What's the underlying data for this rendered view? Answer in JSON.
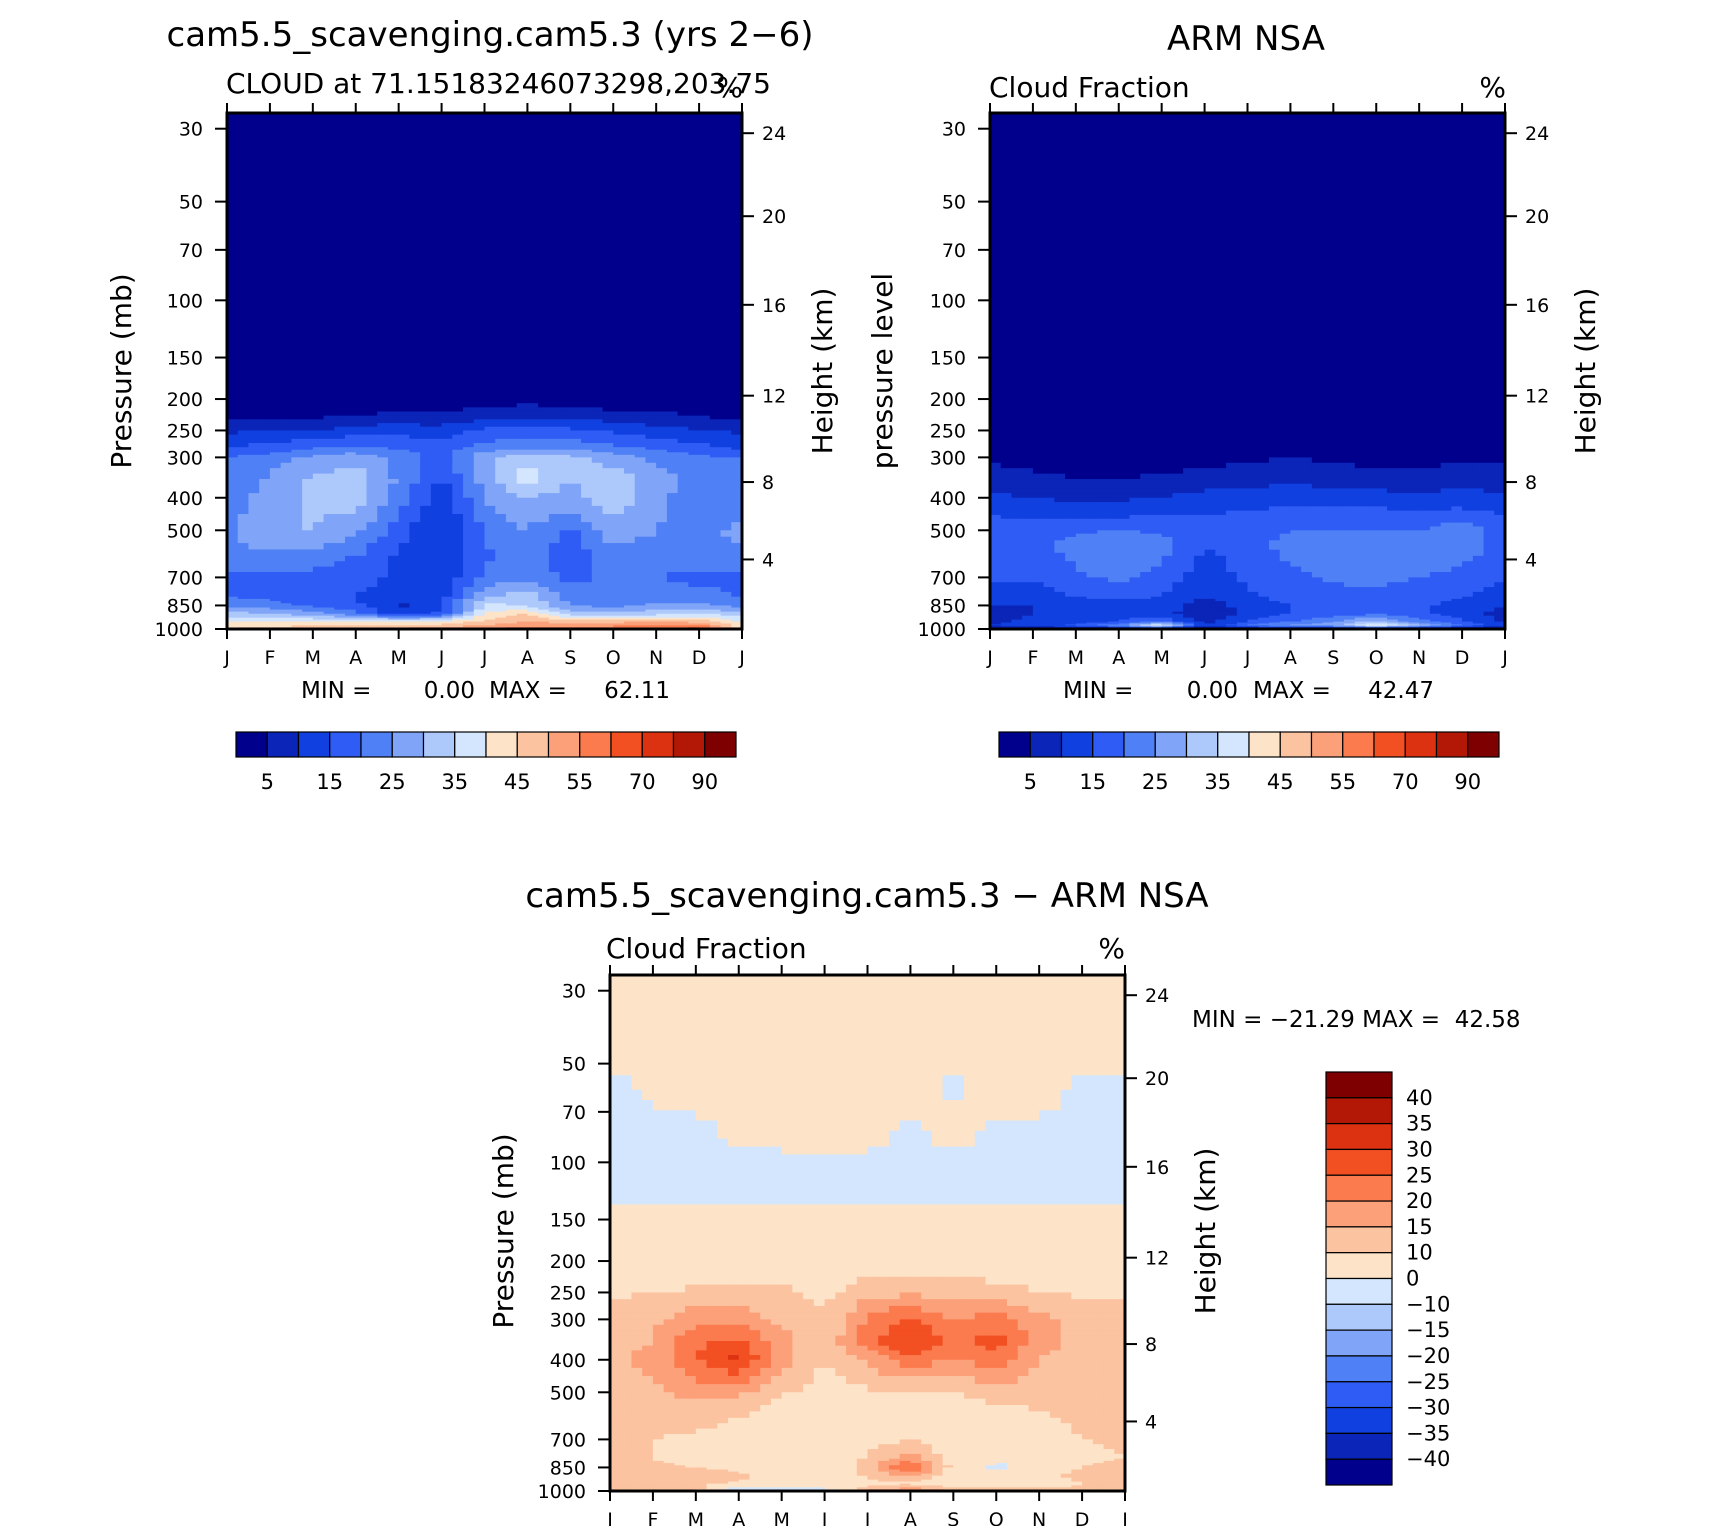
{
  "panels": [
    {
      "title": "cam5.5_scavenging.cam5.3 (yrs 2−6)",
      "subtitle_left": "CLOUD at 71.15183246073298,203.75",
      "subtitle_right": "%",
      "ylabel_left": "Pressure (mb)",
      "ylabel_right": "Height (km)",
      "min_label": "MIN =",
      "min_value": "0.00",
      "max_label": "MAX =",
      "max_value": "62.11"
    },
    {
      "title": "ARM NSA",
      "subtitle_left": "Cloud Fraction",
      "subtitle_right": "%",
      "ylabel_left": "pressure level",
      "ylabel_right": "Height (km)",
      "min_label": "MIN =",
      "min_value": "0.00",
      "max_label": "MAX =",
      "max_value": "42.47"
    },
    {
      "title": "cam5.5_scavenging.cam5.3 − ARM NSA",
      "subtitle_left": "Cloud Fraction",
      "subtitle_right": "%",
      "ylabel_left": "Pressure (mb)",
      "ylabel_right": "Height (km)",
      "minmax_text": "MIN = −21.29 MAX =  42.58"
    }
  ],
  "chart_data": [
    {
      "type": "heatmap",
      "title": "cam5.5_scavenging.cam5.3 (yrs 2−6)",
      "subtitle": "CLOUD at 71.15183246073298,203.75",
      "units": "%",
      "x_tick_labels": [
        "J",
        "F",
        "M",
        "A",
        "M",
        "J",
        "J",
        "A",
        "S",
        "O",
        "N",
        "D",
        "J"
      ],
      "pressure_ticks": [
        30,
        50,
        70,
        100,
        150,
        200,
        250,
        300,
        400,
        500,
        700,
        850,
        1000
      ],
      "height_ticks_km": [
        4,
        8,
        12,
        16,
        20,
        24
      ],
      "ylabel": "Pressure (mb)",
      "y2label": "Height (km)",
      "ylim_mb": [
        1000,
        25
      ],
      "min": 0.0,
      "max": 62.11,
      "colorbar_labels": [
        "5",
        "15",
        "25",
        "35",
        "45",
        "55",
        "70",
        "90"
      ],
      "grid_x_month": [
        0,
        1,
        2,
        3,
        4,
        5,
        6,
        7,
        8,
        9,
        10,
        11,
        12
      ],
      "grid_pressure_mb": [
        25,
        150,
        200,
        225,
        250,
        280,
        300,
        350,
        400,
        500,
        600,
        700,
        800,
        850,
        900,
        950,
        1000
      ],
      "values": [
        [
          0,
          0,
          0,
          0,
          0,
          0,
          0,
          0,
          0,
          0,
          0,
          0,
          0
        ],
        [
          0,
          0,
          0,
          0,
          0,
          0,
          0,
          0,
          0,
          0,
          0,
          0,
          0
        ],
        [
          0,
          1,
          0,
          1,
          1,
          1,
          2,
          3,
          2,
          1,
          1,
          1,
          0
        ],
        [
          3,
          4,
          4,
          5,
          6,
          6,
          8,
          9,
          8,
          7,
          6,
          5,
          3
        ],
        [
          9,
          10,
          10,
          12,
          13,
          12,
          16,
          17,
          16,
          14,
          12,
          10,
          9
        ],
        [
          14,
          17,
          19,
          21,
          19,
          17,
          22,
          24,
          23,
          21,
          19,
          16,
          14
        ],
        [
          20,
          22,
          26,
          28,
          23,
          18,
          29,
          33,
          31,
          28,
          24,
          21,
          20
        ],
        [
          21,
          26,
          31,
          33,
          24,
          14,
          27,
          38,
          30,
          33,
          27,
          23,
          21
        ],
        [
          22,
          27,
          31,
          32,
          23,
          12,
          25,
          30,
          28,
          33,
          26,
          23,
          22
        ],
        [
          24,
          30,
          30,
          27,
          17,
          9,
          21,
          25,
          19,
          29,
          25,
          24,
          26
        ],
        [
          23,
          24,
          23,
          20,
          14,
          10,
          19,
          22,
          17,
          23,
          22,
          22,
          24
        ],
        [
          19,
          19,
          18,
          17,
          14,
          11,
          21,
          23,
          19,
          21,
          20,
          19,
          19
        ],
        [
          20,
          19,
          17,
          15,
          12,
          13,
          30,
          33,
          22,
          20,
          22,
          21,
          20
        ],
        [
          22,
          22,
          19,
          16,
          9,
          14,
          36,
          35,
          25,
          23,
          26,
          27,
          22
        ],
        [
          32,
          30,
          27,
          22,
          11,
          16,
          40,
          45,
          33,
          32,
          33,
          35,
          32
        ],
        [
          40,
          40,
          40,
          40,
          40,
          40,
          46,
          50,
          48,
          48,
          50,
          48,
          40
        ],
        [
          45,
          47,
          49,
          50,
          51,
          53,
          55,
          57,
          58,
          59,
          60,
          62,
          45
        ]
      ]
    },
    {
      "type": "heatmap",
      "title": "ARM NSA",
      "subtitle": "Cloud Fraction",
      "units": "%",
      "x_tick_labels": [
        "J",
        "F",
        "M",
        "A",
        "M",
        "J",
        "J",
        "A",
        "S",
        "O",
        "N",
        "D",
        "J"
      ],
      "pressure_ticks": [
        30,
        50,
        70,
        100,
        150,
        200,
        250,
        300,
        400,
        500,
        700,
        850,
        1000
      ],
      "height_ticks_km": [
        4,
        8,
        12,
        16,
        20,
        24
      ],
      "ylabel": "pressure level",
      "y2label": "Height (km)",
      "ylim_mb": [
        1000,
        25
      ],
      "min": 0.0,
      "max": 42.47,
      "colorbar_labels": [
        "5",
        "15",
        "25",
        "35",
        "45",
        "55",
        "70",
        "90"
      ],
      "grid_x_month": [
        0,
        1,
        2,
        3,
        4,
        5,
        6,
        7,
        8,
        9,
        10,
        11,
        12
      ],
      "grid_pressure_mb": [
        25,
        250,
        300,
        350,
        400,
        450,
        500,
        550,
        600,
        700,
        800,
        850,
        900,
        950,
        975,
        1000
      ],
      "values": [
        [
          0,
          0,
          0,
          0,
          0,
          0,
          0,
          0,
          0,
          0,
          0,
          0,
          0
        ],
        [
          0,
          0,
          0,
          0,
          0,
          0,
          0,
          0,
          0,
          0,
          0,
          0,
          0
        ],
        [
          4,
          3,
          2,
          1,
          2,
          3,
          4,
          5,
          4,
          3,
          3,
          4,
          4
        ],
        [
          7,
          6,
          5,
          5,
          6,
          7,
          8,
          9,
          8,
          7,
          7,
          8,
          7
        ],
        [
          11,
          10,
          9,
          9,
          10,
          12,
          12,
          13,
          12,
          12,
          11,
          12,
          11
        ],
        [
          15,
          14,
          14,
          14,
          15,
          15,
          16,
          17,
          17,
          17,
          17,
          17,
          15
        ],
        [
          17,
          17,
          19,
          20,
          19,
          15,
          17,
          20,
          20,
          20,
          20,
          23,
          17
        ],
        [
          18,
          18,
          22,
          24,
          22,
          15,
          18,
          22,
          23,
          23,
          22,
          23,
          18
        ],
        [
          18,
          18,
          21,
          23,
          21,
          14,
          17,
          21,
          22,
          22,
          22,
          21,
          18
        ],
        [
          16,
          16,
          19,
          21,
          18,
          12,
          16,
          19,
          21,
          21,
          20,
          19,
          16
        ],
        [
          12,
          12,
          15,
          16,
          15,
          10,
          14,
          17,
          18,
          19,
          18,
          15,
          12
        ],
        [
          10,
          10,
          12,
          13,
          13,
          7,
          12,
          15,
          17,
          18,
          16,
          13,
          10
        ],
        [
          8,
          10,
          11,
          12,
          12,
          6,
          11,
          15,
          17,
          19,
          16,
          12,
          8
        ],
        [
          9,
          11,
          12,
          15,
          20,
          8,
          15,
          20,
          25,
          32,
          22,
          16,
          9
        ],
        [
          10,
          13,
          16,
          24,
          40,
          10,
          20,
          26,
          28,
          42,
          30,
          20,
          10
        ],
        [
          3,
          3,
          3,
          3,
          4,
          3,
          3,
          3,
          4,
          4,
          3,
          3,
          3
        ]
      ]
    },
    {
      "type": "heatmap",
      "title": "cam5.5_scavenging.cam5.3 − ARM NSA",
      "subtitle": "Cloud Fraction",
      "units": "%",
      "x_tick_labels": [
        "J",
        "F",
        "M",
        "A",
        "M",
        "J",
        "J",
        "A",
        "S",
        "O",
        "N",
        "D",
        "J"
      ],
      "pressure_ticks": [
        30,
        50,
        70,
        100,
        150,
        200,
        250,
        300,
        400,
        500,
        700,
        850,
        1000
      ],
      "height_ticks_km": [
        4,
        8,
        12,
        16,
        20,
        24
      ],
      "ylabel": "Pressure (mb)",
      "y2label": "Height (km)",
      "ylim_mb": [
        1000,
        25
      ],
      "min": -21.29,
      "max": 42.58,
      "colorbar_labels": [
        "40",
        "35",
        "30",
        "25",
        "20",
        "15",
        "10",
        "0",
        "−10",
        "−15",
        "−20",
        "−25",
        "−30",
        "−35",
        "−40"
      ],
      "grid_x_month": [
        0,
        1,
        2,
        3,
        4,
        5,
        6,
        7,
        8,
        9,
        10,
        11,
        12
      ],
      "grid_pressure_mb": [
        25,
        40,
        60,
        80,
        100,
        130,
        150,
        200,
        250,
        300,
        350,
        400,
        500,
        600,
        700,
        800,
        850,
        900,
        950,
        1000
      ],
      "values": [
        [
          5,
          5,
          5,
          5,
          5,
          5,
          5,
          5,
          5,
          5,
          5,
          5,
          5
        ],
        [
          5,
          5,
          5,
          5,
          5,
          5,
          5,
          5,
          5,
          5,
          5,
          5,
          5
        ],
        [
          -3,
          2,
          5,
          5,
          5,
          5,
          5,
          5,
          -3,
          5,
          5,
          -3,
          -3
        ],
        [
          -3,
          -3,
          -3,
          3,
          5,
          5,
          5,
          -3,
          5,
          -3,
          -3,
          -3,
          -3
        ],
        [
          -3,
          -3,
          -3,
          -3,
          -3,
          -3,
          -3,
          -3,
          -3,
          -3,
          -3,
          -3,
          -3
        ],
        [
          -3,
          -3,
          -3,
          -3,
          -3,
          -3,
          -3,
          -3,
          -3,
          -3,
          -3,
          -3,
          -3
        ],
        [
          5,
          5,
          5,
          5,
          5,
          5,
          5,
          5,
          5,
          5,
          5,
          5,
          5
        ],
        [
          5,
          5,
          5,
          5,
          5,
          5,
          6,
          7,
          7,
          6,
          5,
          5,
          5
        ],
        [
          9,
          10,
          11,
          12,
          11,
          9,
          13,
          14,
          13,
          12,
          10,
          9,
          9
        ],
        [
          13,
          14,
          18,
          18,
          14,
          10,
          21,
          26,
          20,
          22,
          17,
          13,
          13
        ],
        [
          14,
          15,
          24,
          26,
          17,
          11,
          23,
          31,
          24,
          27,
          17,
          13,
          14
        ],
        [
          14,
          16,
          25,
          32,
          17,
          10,
          16,
          23,
          20,
          23,
          15,
          13,
          14
        ],
        [
          12,
          14,
          17,
          16,
          11,
          7,
          9,
          10,
          10,
          13,
          12,
          12,
          12
        ],
        [
          12,
          12,
          12,
          10,
          6,
          5,
          6,
          7,
          6,
          7,
          9,
          11,
          12
        ],
        [
          11,
          10,
          9,
          7,
          5,
          4,
          7,
          10,
          5,
          5,
          7,
          10,
          11
        ],
        [
          10,
          10,
          8,
          6,
          3,
          5,
          11,
          18,
          7,
          2,
          4,
          8,
          10
        ],
        [
          13,
          11,
          10,
          8,
          4,
          4,
          13,
          27,
          8,
          -2,
          3,
          10,
          13
        ],
        [
          13,
          13,
          15,
          12,
          6,
          5,
          11,
          16,
          6,
          2,
          5,
          14,
          13
        ],
        [
          11,
          10,
          11,
          9,
          6,
          6,
          8,
          9,
          6,
          5,
          6,
          10,
          11
        ],
        [
          12,
          12,
          13,
          -12,
          -10,
          -6,
          16,
          20,
          15,
          15,
          13,
          12,
          12
        ]
      ]
    }
  ],
  "colors": {
    "seq_palette": [
      "#00008c",
      "#0a25b8",
      "#1040e0",
      "#2e5cf5",
      "#5080f5",
      "#80a5f8",
      "#adc8fb",
      "#d4e6fd",
      "#fde4c9",
      "#fcc3a0",
      "#fca07a",
      "#fb7a4e",
      "#f24f22",
      "#dd3211",
      "#b31807",
      "#7f0000"
    ],
    "seq_levels": [
      5,
      10,
      15,
      20,
      25,
      30,
      35,
      40,
      45,
      50,
      55,
      60,
      70,
      80,
      90
    ],
    "diff_palette": [
      "#00008c",
      "#0a25b8",
      "#1040e0",
      "#2e5cf5",
      "#5080f5",
      "#80a5f8",
      "#adc8fb",
      "#d4e6fd",
      "#fde4c9",
      "#fcc3a0",
      "#fca07a",
      "#fb7a4e",
      "#f24f22",
      "#dd3211",
      "#b31807",
      "#7f0000"
    ],
    "diff_levels": [
      -40,
      -35,
      -30,
      -25,
      -20,
      -15,
      -10,
      0,
      10,
      15,
      20,
      25,
      30,
      35,
      40
    ]
  }
}
